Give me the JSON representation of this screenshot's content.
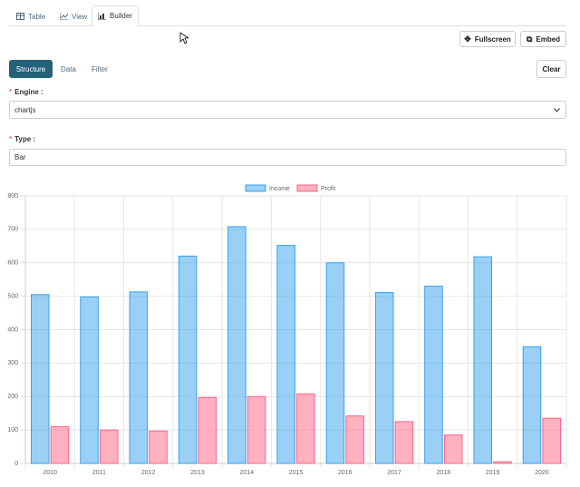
{
  "tabs": [
    "Table",
    "View",
    "Builder"
  ],
  "actions": [
    "Fullscreen",
    "Embed"
  ],
  "sub_tabs": [
    "Structure",
    "Data",
    "Filter"
  ],
  "clear": "Clear",
  "form": {
    "required_mark": "*",
    "engine_label": "Engine :",
    "engine_value": "chartjs",
    "type_label": "Type :",
    "type_value": "Bar"
  },
  "chart_data": {
    "type": "bar",
    "categories": [
      "2010",
      "2011",
      "2012",
      "2013",
      "2014",
      "2015",
      "2016",
      "2017",
      "2018",
      "2019",
      "2020"
    ],
    "series": [
      {
        "name": "Income",
        "color": "#36a2eb",
        "values": [
          505,
          498,
          513,
          620,
          708,
          652,
          600,
          511,
          530,
          618,
          349
        ]
      },
      {
        "name": "Profit",
        "color": "#ff6384",
        "values": [
          110,
          100,
          97,
          197,
          200,
          208,
          142,
          125,
          85,
          5,
          135
        ]
      }
    ],
    "ylim": [
      0,
      800
    ],
    "yticks": [
      0,
      100,
      200,
      300,
      400,
      500,
      600,
      700,
      800
    ],
    "grid": true,
    "legend": "top"
  }
}
